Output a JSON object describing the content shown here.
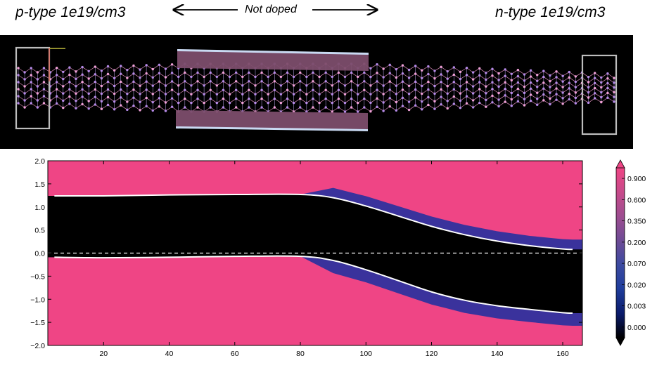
{
  "annotations": {
    "left": "p-type 1e19/cm3",
    "right": "n-type 1e19/cm3",
    "middle": "Not doped"
  },
  "chart_data": {
    "type": "heatmap",
    "title": "",
    "xlabel": "",
    "ylabel": "",
    "xlim": [
      3,
      166
    ],
    "ylim": [
      -2.0,
      2.0
    ],
    "x_ticks": [
      20,
      40,
      60,
      80,
      100,
      120,
      140,
      160
    ],
    "y_ticks": [
      2.0,
      1.5,
      1.0,
      0.5,
      0.0,
      -0.5,
      -1.0,
      -1.5,
      -2.0
    ],
    "y_tick_labels": [
      "2.0",
      "1.5",
      "1.0",
      "0.5",
      "0.0",
      "−0.5",
      "−1.0",
      "−1.5",
      "−2.0"
    ],
    "grid": false,
    "colorbar": {
      "ticks": [
        "0.900",
        "0.600",
        "0.350",
        "0.200",
        "0.070",
        "0.020",
        "0.003",
        "0.000"
      ],
      "colors": [
        "#ef4585",
        "#c84a8a",
        "#9c4d90",
        "#6d4b95",
        "#3c4aa0",
        "#1f3d9c",
        "#0a1a6a",
        "#000000"
      ]
    },
    "fermi_level": 0.0,
    "series": [
      {
        "x": [
          5,
          20,
          40,
          60,
          80,
          90,
          100,
          110,
          120,
          130,
          140,
          150,
          160,
          163
        ],
        "y": [
          1.24,
          1.24,
          1.26,
          1.27,
          1.27,
          1.2,
          1.02,
          0.8,
          0.58,
          0.4,
          0.26,
          0.16,
          0.09,
          0.08
        ]
      },
      {
        "x": [
          5,
          20,
          40,
          60,
          80,
          90,
          100,
          110,
          120,
          130,
          140,
          150,
          160,
          163
        ],
        "y": [
          -0.09,
          -0.1,
          -0.09,
          -0.07,
          -0.07,
          -0.16,
          -0.36,
          -0.6,
          -0.84,
          -1.02,
          -1.14,
          -1.22,
          -1.29,
          -1.3
        ]
      }
    ]
  }
}
